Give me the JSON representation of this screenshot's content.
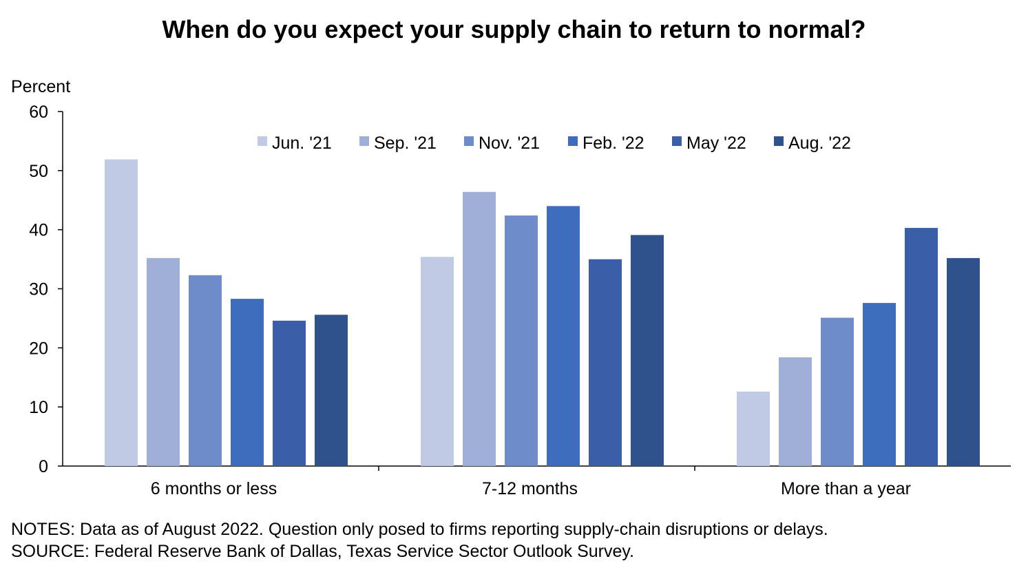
{
  "chart_data": {
    "type": "bar",
    "title": "When do you expect your supply chain to return to normal?",
    "ylabel": "Percent",
    "xlabel": "",
    "ylim": [
      0,
      60
    ],
    "yticks": [
      0,
      10,
      20,
      30,
      40,
      50,
      60
    ],
    "categories": [
      "6 months or less",
      "7-12 months",
      "More than a year"
    ],
    "series": [
      {
        "name": "Jun. '21",
        "color": "#c0cae4",
        "values": [
          51.9,
          35.4,
          12.6
        ]
      },
      {
        "name": "Sep. '21",
        "color": "#9fafd8",
        "values": [
          35.2,
          46.4,
          18.4
        ]
      },
      {
        "name": "Nov. '21",
        "color": "#6e8bca",
        "values": [
          32.3,
          42.4,
          25.1
        ]
      },
      {
        "name": "Feb. '22",
        "color": "#3f6dbd",
        "values": [
          28.3,
          44.0,
          27.6
        ]
      },
      {
        "name": "May '22",
        "color": "#3a5fa8",
        "values": [
          24.6,
          35.0,
          40.3
        ]
      },
      {
        "name": "Aug. '22",
        "color": "#2f528d",
        "values": [
          25.6,
          39.1,
          35.2
        ]
      }
    ],
    "legend_position": "top-center",
    "grid": false
  },
  "notes": "NOTES: Data as of August 2022. Question only posed to firms reporting supply-chain disruptions or delays.",
  "source": "SOURCE: Federal Reserve Bank of Dallas, Texas Service Sector Outlook Survey."
}
